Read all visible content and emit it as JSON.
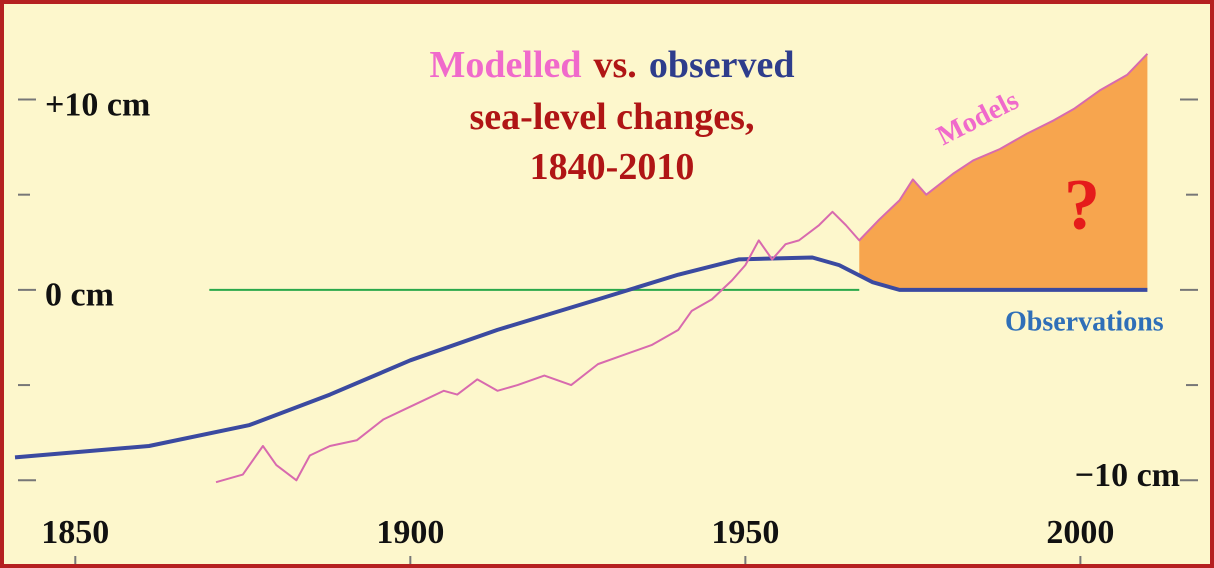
{
  "chart_data": {
    "type": "line",
    "title": [
      [
        {
          "text": "Modelled",
          "color": "#f06acb"
        },
        {
          "text": "vs.",
          "color": "#b01515"
        },
        {
          "text": "observed",
          "color": "#2e3d8c"
        }
      ],
      [
        {
          "text": "sea-level changes,",
          "color": "#b01515"
        }
      ],
      [
        {
          "text": "1840-2010",
          "color": "#b01515"
        }
      ]
    ],
    "xlim": [
      1841,
      2018
    ],
    "xticks": [
      1850,
      1900,
      1950,
      2000
    ],
    "ylim": [
      -13.4,
      14.7
    ],
    "yticks": [
      {
        "value": 10,
        "label": "+10 cm"
      },
      {
        "value": 0,
        "label": "0 cm"
      },
      {
        "value": -10,
        "label": "−10 cm"
      }
    ],
    "yminorticks": [
      5,
      -5
    ],
    "series": [
      {
        "name": "Observations",
        "color": "#3b4aa0",
        "label_color": "#2f6fb8",
        "x": [
          1841,
          1861,
          1876,
          1888,
          1900,
          1913,
          1928,
          1940,
          1949,
          1960,
          1964,
          1969,
          1973,
          2010
        ],
        "values": [
          -8.8,
          -8.2,
          -7.1,
          -5.5,
          -3.7,
          -2.1,
          -0.5,
          0.8,
          1.6,
          1.7,
          1.3,
          0.4,
          0,
          0
        ]
      },
      {
        "name": "Models",
        "color": "#d86aae",
        "label_color": "#f06acb",
        "x": [
          1871,
          1875,
          1878,
          1880,
          1883,
          1885,
          1888,
          1892,
          1896,
          1899,
          1902,
          1905,
          1907,
          1910,
          1913,
          1916,
          1920,
          1924,
          1928,
          1932,
          1936,
          1940,
          1942,
          1945,
          1948,
          1950,
          1952,
          1954,
          1956,
          1958,
          1961,
          1963,
          1965,
          1967,
          1970,
          1973,
          1975,
          1977,
          1981,
          1984,
          1988,
          1992,
          1996,
          1999,
          2003,
          2007,
          2010
        ],
        "values": [
          -10.1,
          -9.7,
          -8.2,
          -9.2,
          -10.0,
          -8.7,
          -8.2,
          -7.9,
          -6.8,
          -6.3,
          -5.8,
          -5.3,
          -5.5,
          -4.7,
          -5.3,
          -5.0,
          -4.5,
          -5.0,
          -3.9,
          -3.4,
          -2.9,
          -2.1,
          -1.1,
          -0.5,
          0.5,
          1.3,
          2.6,
          1.6,
          2.4,
          2.6,
          3.4,
          4.1,
          3.4,
          2.6,
          3.7,
          4.7,
          5.8,
          5.0,
          6.1,
          6.8,
          7.4,
          8.2,
          8.9,
          9.5,
          10.5,
          11.3,
          12.4
        ]
      }
    ],
    "fill_between": {
      "from": 1967,
      "color": "#f7a54e"
    },
    "zero_line": {
      "value": 0,
      "from": 1870,
      "to": 1967,
      "color": "#2aa84a"
    },
    "annotation": {
      "text": "?",
      "color": "#e51b1b"
    },
    "background": "#fdf7cc",
    "border": "#b52020"
  }
}
